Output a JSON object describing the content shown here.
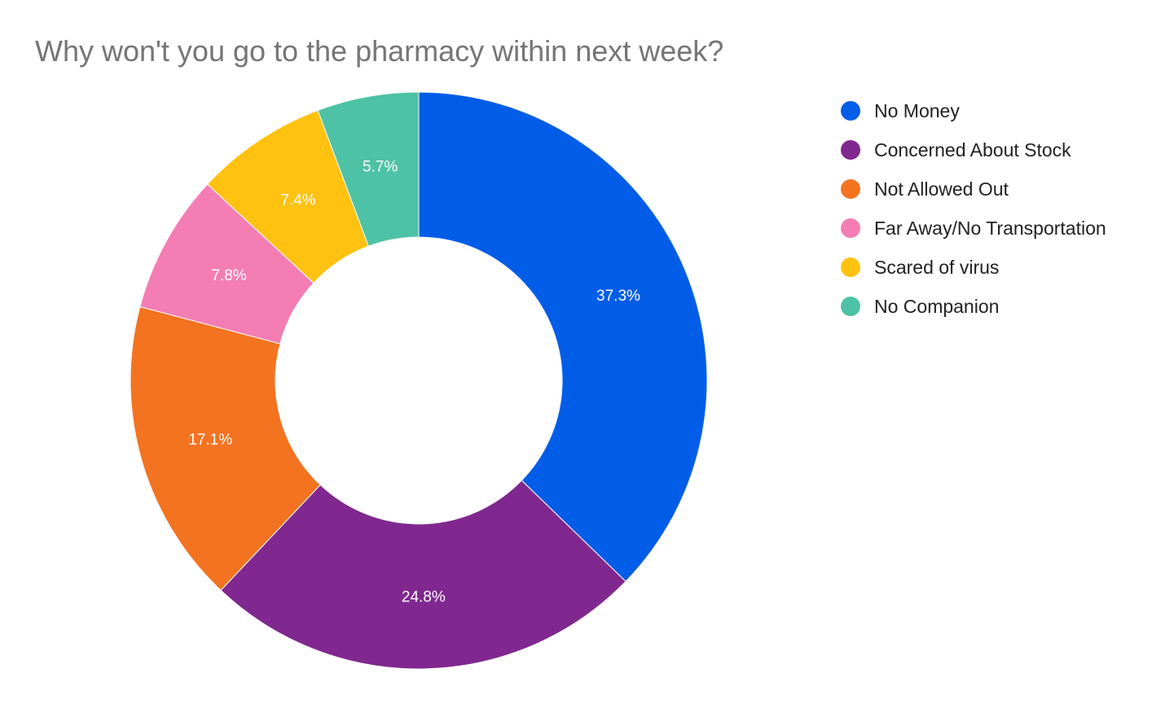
{
  "chart_data": {
    "type": "pie",
    "donut": true,
    "title": "Why won't you go to the pharmacy within next week?",
    "categories": [
      "No Money",
      "Concerned About Stock",
      "Not Allowed Out",
      "Far Away/No Transportation",
      "Scared of virus",
      "No Companion"
    ],
    "values": [
      37.3,
      24.8,
      17.1,
      7.8,
      7.4,
      5.7
    ],
    "data_labels": [
      "37.3%",
      "24.8%",
      "17.1%",
      "7.8%",
      "7.4%",
      "5.7%"
    ],
    "colors": [
      "#015DE8",
      "#80288F",
      "#F37321",
      "#F47EB3",
      "#FFC211",
      "#4EC2A5"
    ],
    "legend_position": "right"
  }
}
